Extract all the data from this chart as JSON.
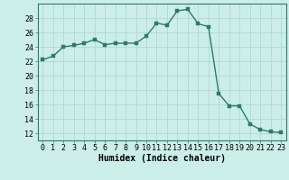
{
  "x": [
    0,
    1,
    2,
    3,
    4,
    5,
    6,
    7,
    8,
    9,
    10,
    11,
    12,
    13,
    14,
    15,
    16,
    17,
    18,
    19,
    20,
    21,
    22,
    23
  ],
  "y": [
    22.2,
    22.7,
    24.0,
    24.2,
    24.5,
    25.0,
    24.3,
    24.5,
    24.5,
    24.5,
    25.5,
    27.3,
    27.0,
    29.0,
    29.2,
    27.2,
    26.8,
    17.5,
    15.8,
    15.8,
    13.3,
    12.5,
    12.2,
    12.1
  ],
  "line_color": "#2d7a6a",
  "marker_color": "#2d7a6a",
  "bg_color": "#cceee8",
  "grid_color": "#aad4cc",
  "xlabel": "Humidex (Indice chaleur)",
  "xlim": [
    -0.5,
    23.5
  ],
  "ylim": [
    11,
    30
  ],
  "yticks": [
    12,
    14,
    16,
    18,
    20,
    22,
    24,
    26,
    28
  ],
  "xticks": [
    0,
    1,
    2,
    3,
    4,
    5,
    6,
    7,
    8,
    9,
    10,
    11,
    12,
    13,
    14,
    15,
    16,
    17,
    18,
    19,
    20,
    21,
    22,
    23
  ],
  "tick_fontsize": 6,
  "label_fontsize": 7,
  "marker_size": 2.5,
  "line_width": 1.0
}
